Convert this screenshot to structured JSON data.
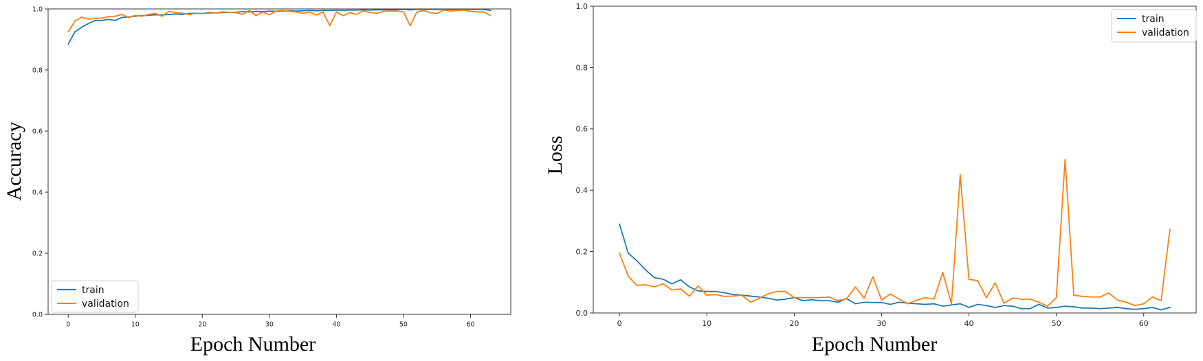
{
  "chart_data": [
    {
      "type": "line",
      "title": "",
      "xlabel": "Epoch Number",
      "ylabel": "Accuracy",
      "xlim": [
        -3,
        66
      ],
      "ylim": [
        0,
        1.0
      ],
      "xticks": [
        0,
        10,
        20,
        30,
        40,
        50,
        60
      ],
      "xtick_labels": [
        "0",
        "10",
        "20",
        "30",
        "40",
        "50",
        "60"
      ],
      "yticks": [
        0,
        0.2,
        0.4,
        0.6,
        0.8,
        1.0
      ],
      "ytick_labels": [
        "0.0",
        "0.2",
        "0.4",
        "0.6",
        "0.8",
        "1.0"
      ],
      "grid": false,
      "legend": "lower-left",
      "series": [
        {
          "name": "train",
          "color": "#1f77b4",
          "x": [
            0,
            1,
            2,
            3,
            4,
            5,
            6,
            7,
            8,
            9,
            10,
            11,
            12,
            13,
            14,
            15,
            16,
            17,
            18,
            19,
            20,
            21,
            22,
            23,
            24,
            25,
            26,
            27,
            28,
            29,
            30,
            31,
            32,
            33,
            34,
            35,
            36,
            37,
            38,
            39,
            40,
            41,
            42,
            43,
            44,
            45,
            46,
            47,
            48,
            49,
            50,
            51,
            52,
            53,
            54,
            55,
            56,
            57,
            58,
            59,
            60,
            61,
            62,
            63
          ],
          "values": [
            0.885,
            0.925,
            0.94,
            0.952,
            0.962,
            0.962,
            0.966,
            0.962,
            0.972,
            0.974,
            0.976,
            0.978,
            0.979,
            0.981,
            0.98,
            0.982,
            0.983,
            0.982,
            0.985,
            0.986,
            0.985,
            0.988,
            0.987,
            0.988,
            0.989,
            0.989,
            0.991,
            0.99,
            0.992,
            0.991,
            0.993,
            0.992,
            0.993,
            0.994,
            0.993,
            0.994,
            0.995,
            0.994,
            0.995,
            0.995,
            0.996,
            0.995,
            0.996,
            0.996,
            0.997,
            0.996,
            0.997,
            0.997,
            0.997,
            0.997,
            0.998,
            0.997,
            0.998,
            0.998,
            0.998,
            0.998,
            0.998,
            0.998,
            0.998,
            0.998,
            0.998,
            0.998,
            0.998,
            0.995
          ]
        },
        {
          "name": "validation",
          "color": "#ff7f0e",
          "x": [
            0,
            1,
            2,
            3,
            4,
            5,
            6,
            7,
            8,
            9,
            10,
            11,
            12,
            13,
            14,
            15,
            16,
            17,
            18,
            19,
            20,
            21,
            22,
            23,
            24,
            25,
            26,
            27,
            28,
            29,
            30,
            31,
            32,
            33,
            34,
            35,
            36,
            37,
            38,
            39,
            40,
            41,
            42,
            43,
            44,
            45,
            46,
            47,
            48,
            49,
            50,
            51,
            52,
            53,
            54,
            55,
            56,
            57,
            58,
            59,
            60,
            61,
            62,
            63
          ],
          "values": [
            0.925,
            0.96,
            0.973,
            0.967,
            0.968,
            0.97,
            0.975,
            0.976,
            0.982,
            0.972,
            0.979,
            0.976,
            0.982,
            0.985,
            0.976,
            0.992,
            0.988,
            0.986,
            0.982,
            0.985,
            0.984,
            0.986,
            0.987,
            0.99,
            0.989,
            0.988,
            0.982,
            0.995,
            0.978,
            0.99,
            0.981,
            0.993,
            0.995,
            0.992,
            0.99,
            0.985,
            0.99,
            0.98,
            0.99,
            0.945,
            0.99,
            0.978,
            0.988,
            0.982,
            0.994,
            0.988,
            0.986,
            0.992,
            0.993,
            0.993,
            0.99,
            0.945,
            0.99,
            0.995,
            0.988,
            0.985,
            0.996,
            0.993,
            0.995,
            0.996,
            0.992,
            0.99,
            0.99,
            0.978
          ]
        }
      ]
    },
    {
      "type": "line",
      "title": "",
      "xlabel": "Epoch Number",
      "ylabel": "Loss",
      "xlim": [
        -3,
        66
      ],
      "ylim": [
        0,
        1.0
      ],
      "xticks": [
        0,
        10,
        20,
        30,
        40,
        50,
        60
      ],
      "xtick_labels": [
        "0",
        "10",
        "20",
        "30",
        "40",
        "50",
        "60"
      ],
      "yticks": [
        0,
        0.2,
        0.4,
        0.6,
        0.8,
        1.0
      ],
      "ytick_labels": [
        "0.0",
        "0.2",
        "0.4",
        "0.6",
        "0.8",
        "1.0"
      ],
      "grid": false,
      "legend": "top-right",
      "series": [
        {
          "name": "train",
          "color": "#1f77b4",
          "x": [
            0,
            1,
            2,
            3,
            4,
            5,
            6,
            7,
            8,
            9,
            10,
            11,
            12,
            13,
            14,
            15,
            16,
            17,
            18,
            19,
            20,
            21,
            22,
            23,
            24,
            25,
            26,
            27,
            28,
            29,
            30,
            31,
            32,
            33,
            34,
            35,
            36,
            37,
            38,
            39,
            40,
            41,
            42,
            43,
            44,
            45,
            46,
            47,
            48,
            49,
            50,
            51,
            52,
            53,
            54,
            55,
            56,
            57,
            58,
            59,
            60,
            61,
            62,
            63
          ],
          "values": [
            0.29,
            0.195,
            0.17,
            0.14,
            0.115,
            0.11,
            0.095,
            0.108,
            0.085,
            0.072,
            0.07,
            0.07,
            0.066,
            0.06,
            0.058,
            0.055,
            0.052,
            0.048,
            0.042,
            0.045,
            0.05,
            0.04,
            0.043,
            0.04,
            0.04,
            0.035,
            0.047,
            0.03,
            0.035,
            0.034,
            0.034,
            0.028,
            0.035,
            0.032,
            0.03,
            0.028,
            0.03,
            0.022,
            0.026,
            0.03,
            0.018,
            0.028,
            0.024,
            0.018,
            0.024,
            0.022,
            0.014,
            0.014,
            0.028,
            0.016,
            0.018,
            0.022,
            0.02,
            0.016,
            0.016,
            0.014,
            0.016,
            0.018,
            0.014,
            0.012,
            0.014,
            0.018,
            0.01,
            0.018
          ]
        },
        {
          "name": "validation",
          "color": "#ff7f0e",
          "x": [
            0,
            1,
            2,
            3,
            4,
            5,
            6,
            7,
            8,
            9,
            10,
            11,
            12,
            13,
            14,
            15,
            16,
            17,
            18,
            19,
            20,
            21,
            22,
            23,
            24,
            25,
            26,
            27,
            28,
            29,
            30,
            31,
            32,
            33,
            34,
            35,
            36,
            37,
            38,
            39,
            40,
            41,
            42,
            43,
            44,
            45,
            46,
            47,
            48,
            49,
            50,
            51,
            52,
            53,
            54,
            55,
            56,
            57,
            58,
            59,
            60,
            61,
            62,
            63
          ],
          "values": [
            0.195,
            0.12,
            0.09,
            0.092,
            0.085,
            0.095,
            0.075,
            0.078,
            0.055,
            0.088,
            0.058,
            0.06,
            0.054,
            0.055,
            0.058,
            0.035,
            0.048,
            0.062,
            0.07,
            0.07,
            0.05,
            0.05,
            0.05,
            0.05,
            0.052,
            0.04,
            0.046,
            0.085,
            0.048,
            0.118,
            0.042,
            0.062,
            0.045,
            0.03,
            0.042,
            0.05,
            0.045,
            0.132,
            0.03,
            0.45,
            0.11,
            0.105,
            0.05,
            0.098,
            0.032,
            0.048,
            0.045,
            0.045,
            0.035,
            0.022,
            0.05,
            0.5,
            0.058,
            0.054,
            0.052,
            0.052,
            0.065,
            0.042,
            0.035,
            0.024,
            0.03,
            0.052,
            0.04,
            0.272
          ]
        }
      ]
    }
  ]
}
